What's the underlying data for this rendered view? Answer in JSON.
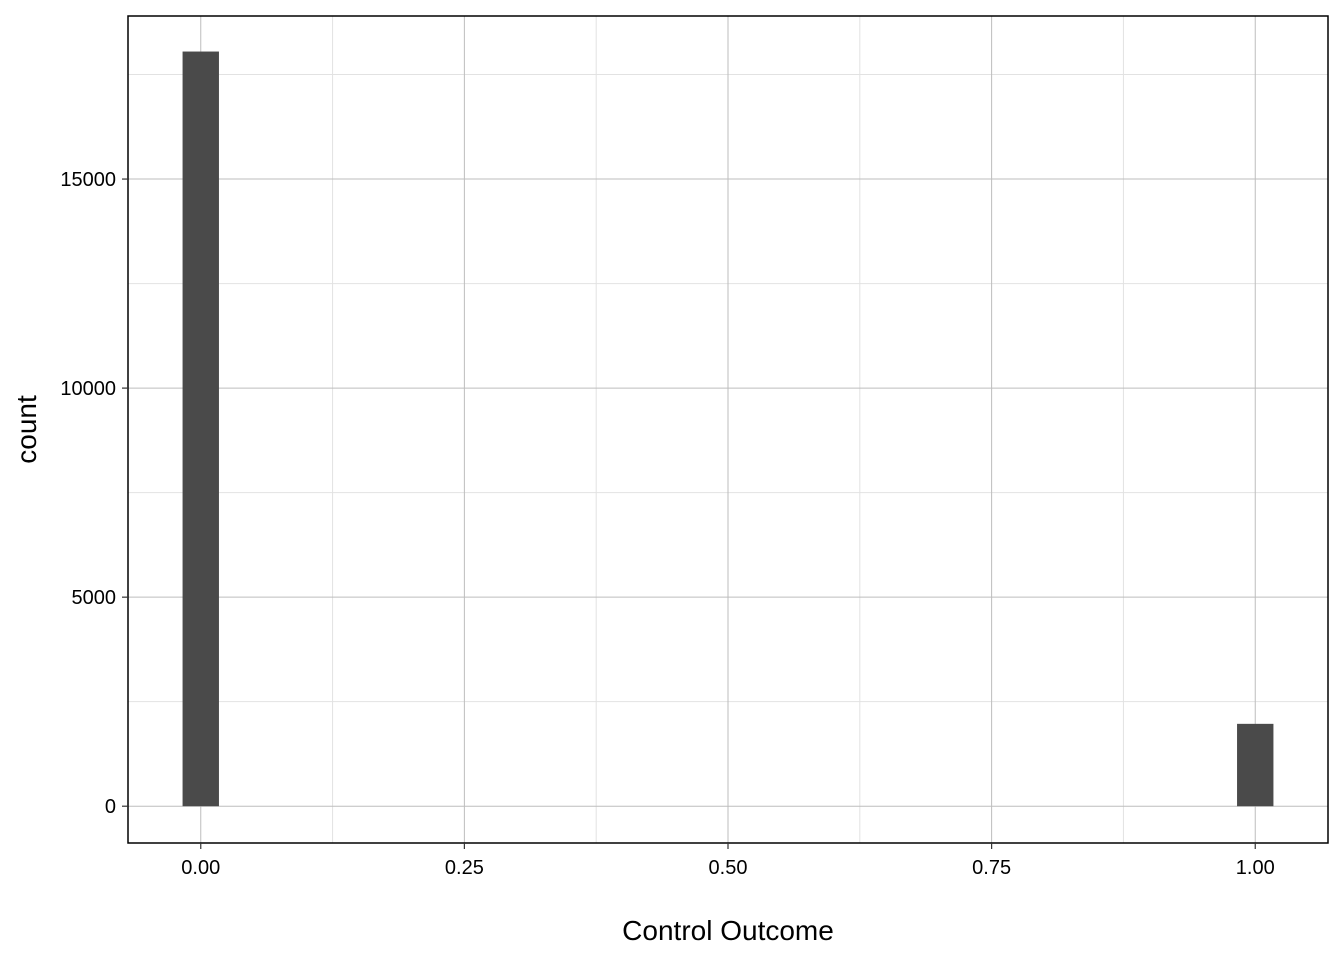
{
  "chart_data": {
    "type": "bar",
    "title": "",
    "xlabel": "Control Outcome",
    "ylabel": "count",
    "x_ticks": [
      "0.00",
      "0.25",
      "0.50",
      "0.75",
      "1.00"
    ],
    "y_ticks": [
      "0",
      "5000",
      "10000",
      "15000"
    ],
    "xlim": [
      -0.069,
      1.069
    ],
    "ylim": [
      -880,
      18900
    ],
    "bin_width": 0.0345,
    "bins": [
      {
        "x": 0.0,
        "count": 18050
      },
      {
        "x": 1.0,
        "count": 1970
      }
    ],
    "grid": true,
    "legend": "none",
    "bar_color": "#4a4a4a",
    "grid_major_color": "#bdbdbd",
    "grid_minor_color": "#e2e2e2",
    "panel_border_color": "#000000"
  }
}
